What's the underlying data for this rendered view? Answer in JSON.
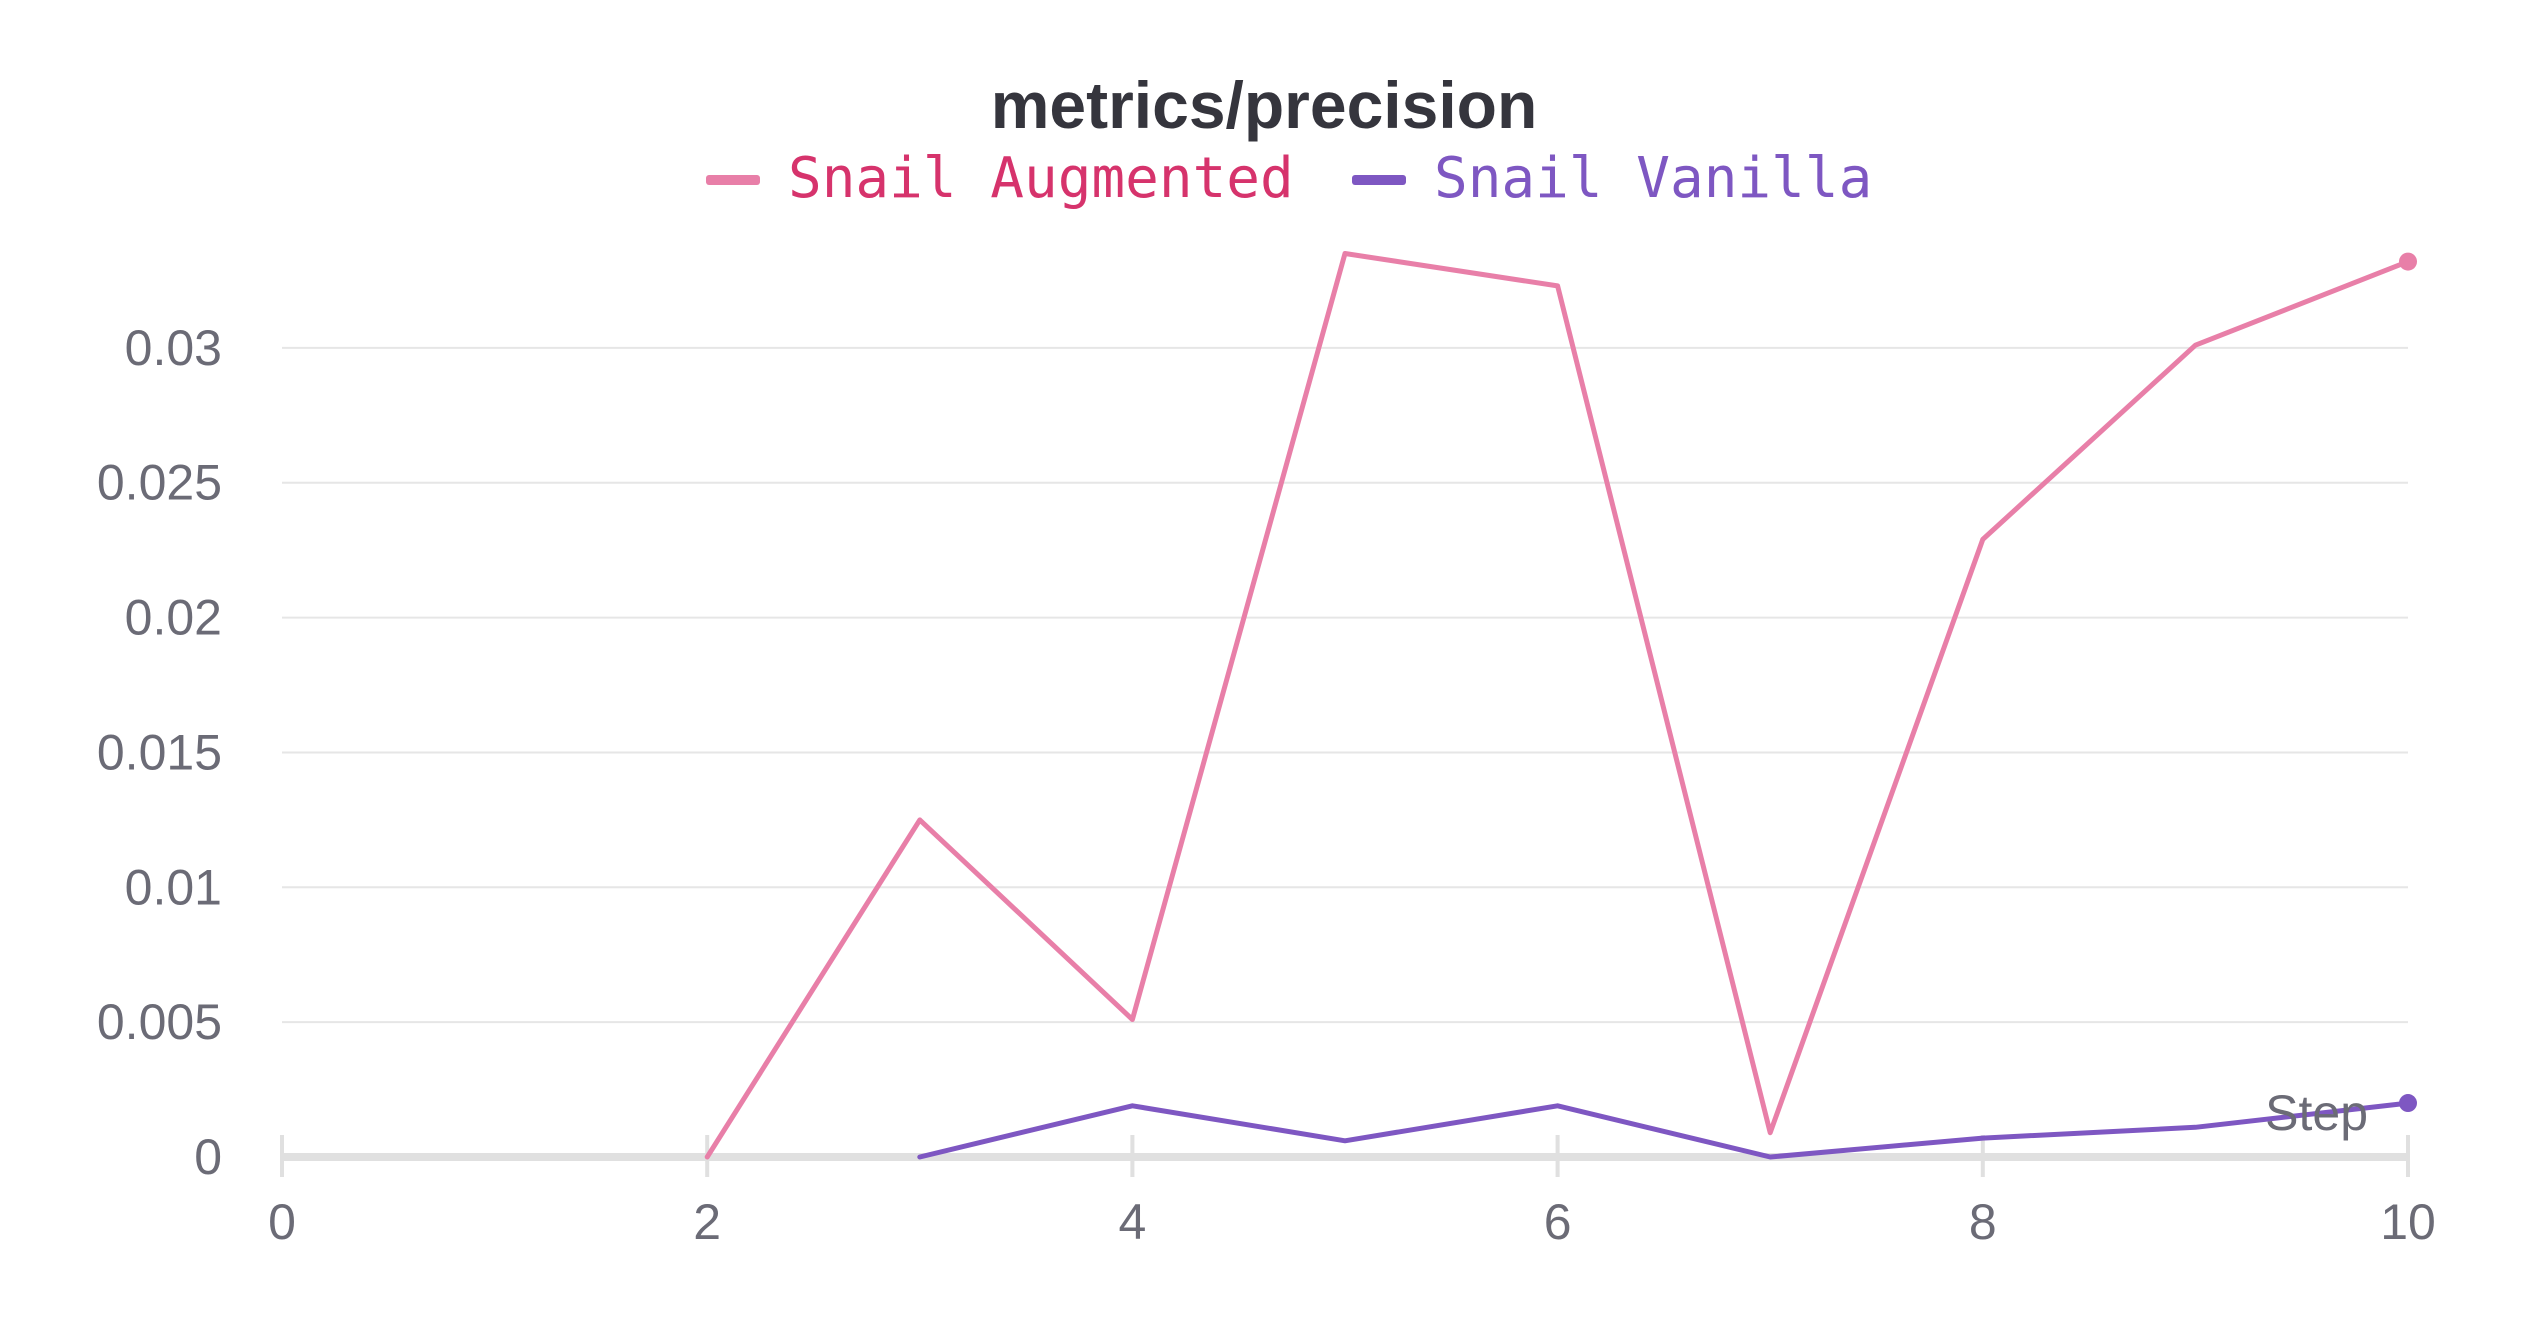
{
  "chart_data": {
    "type": "line",
    "title": "metrics/precision",
    "xlabel": "Step",
    "ylabel": "",
    "xlim": [
      0,
      10
    ],
    "ylim": [
      0,
      0.034
    ],
    "x_ticks": [
      0,
      2,
      4,
      6,
      8,
      10
    ],
    "x_tick_labels": [
      "0",
      "2",
      "4",
      "6",
      "8",
      "10"
    ],
    "y_ticks": [
      0,
      0.005,
      0.01,
      0.015,
      0.02,
      0.025,
      0.03
    ],
    "y_tick_labels": [
      "0",
      "0.005",
      "0.01",
      "0.015",
      "0.02",
      "0.025",
      "0.03"
    ],
    "grid": true,
    "legend_position": "top-center",
    "series": [
      {
        "name": "Snail Augmented",
        "color": "#e87fa8",
        "label_color": "#d6336c",
        "x": [
          2,
          3,
          4,
          5,
          6,
          7,
          8,
          9,
          10
        ],
        "y": [
          0,
          0.0125,
          0.0051,
          0.0335,
          0.0323,
          0.0009,
          0.0229,
          0.0301,
          0.0332
        ]
      },
      {
        "name": "Snail Vanilla",
        "color": "#7e57c2",
        "label_color": "#7e57c2",
        "x": [
          3,
          4,
          5,
          6,
          7,
          8,
          9,
          10
        ],
        "y": [
          0,
          0.0019,
          0.0006,
          0.0019,
          0,
          0.0007,
          0.0011,
          0.002
        ]
      }
    ]
  }
}
